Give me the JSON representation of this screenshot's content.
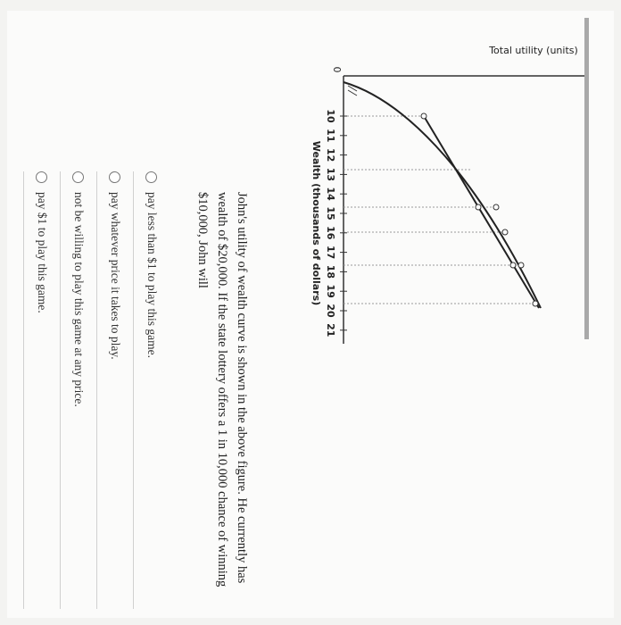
{
  "figure": {
    "y_axis_label": "Total utility (units)",
    "origin_label": "0",
    "x_ticks": [
      10,
      11,
      12,
      13,
      14,
      15,
      16,
      17,
      18,
      19,
      20,
      21
    ],
    "x_axis_label": "Wealth (thousands of dollars)"
  },
  "question": {
    "text": "John's utility of wealth curve is shown in the above figure. He currently has wealth of $20,000. If the state lottery offers a 1 in 10,000 chance of winning $10,000, John will"
  },
  "options": [
    "pay less than $1 to play this game.",
    "pay whatever price it takes to play.",
    "not be willing to play this game at any price.",
    "pay $1 to play this game."
  ]
}
